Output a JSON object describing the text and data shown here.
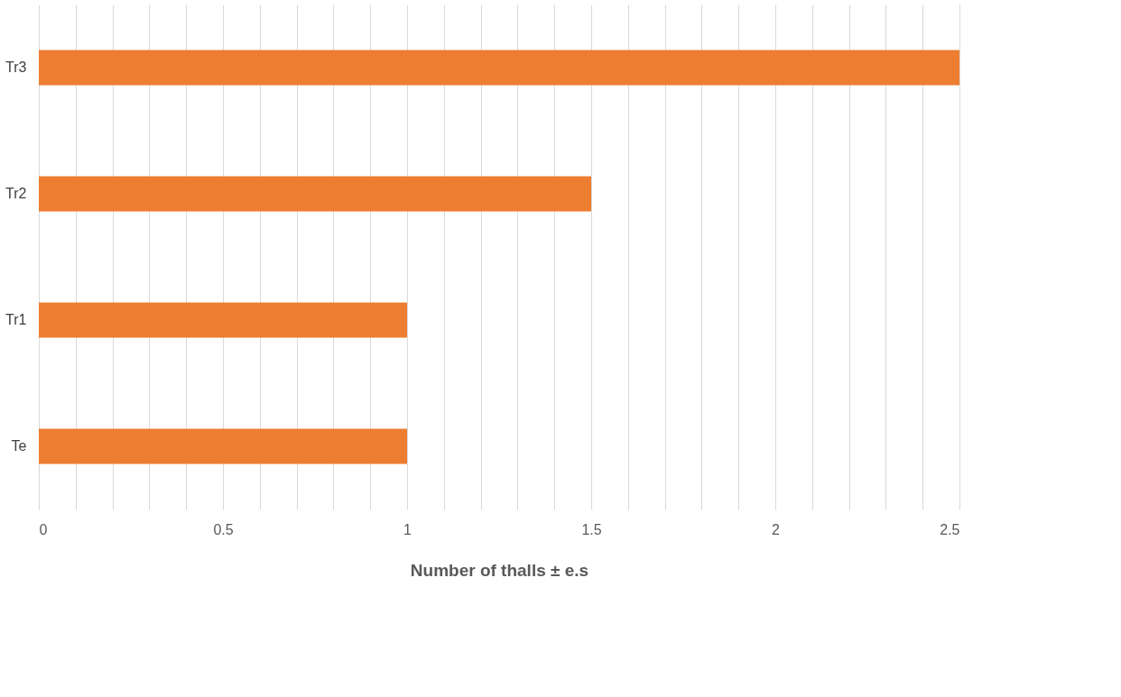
{
  "chart_data": {
    "type": "bar",
    "orientation": "horizontal",
    "xlabel": "Number of thalls ± e.s",
    "categories": [
      "Tr3",
      "Tr2",
      "Tr1",
      "Te"
    ],
    "values": [
      2.5,
      1.5,
      1,
      1
    ],
    "color": "#ed7d31",
    "xlim": [
      0,
      2.5
    ],
    "xticks": [
      0,
      {
        "value": 0.1,
        "label": null
      },
      {
        "value": 0.2,
        "label": null
      },
      {
        "value": 0.3,
        "label": null
      },
      {
        "value": 0.4,
        "label": null
      },
      0.5,
      {
        "value": 0.6,
        "label": null
      },
      {
        "value": 0.7,
        "label": null
      },
      {
        "value": 0.8,
        "label": null
      },
      {
        "value": 0.9,
        "label": null
      },
      1,
      {
        "value": 1.1,
        "label": null
      },
      {
        "value": 1.2,
        "label": null
      },
      {
        "value": 1.3,
        "label": null
      },
      {
        "value": 1.4,
        "label": null
      },
      1.5,
      {
        "value": 1.6,
        "label": null
      },
      {
        "value": 1.7,
        "label": null
      },
      {
        "value": 1.8,
        "label": null
      },
      {
        "value": 1.9,
        "label": null
      },
      2,
      {
        "value": 2.1,
        "label": null
      },
      {
        "value": 2.2,
        "label": null
      },
      {
        "value": 2.3,
        "label": null
      },
      {
        "value": 2.4,
        "label": null
      },
      2.5
    ],
    "grid": "x"
  }
}
